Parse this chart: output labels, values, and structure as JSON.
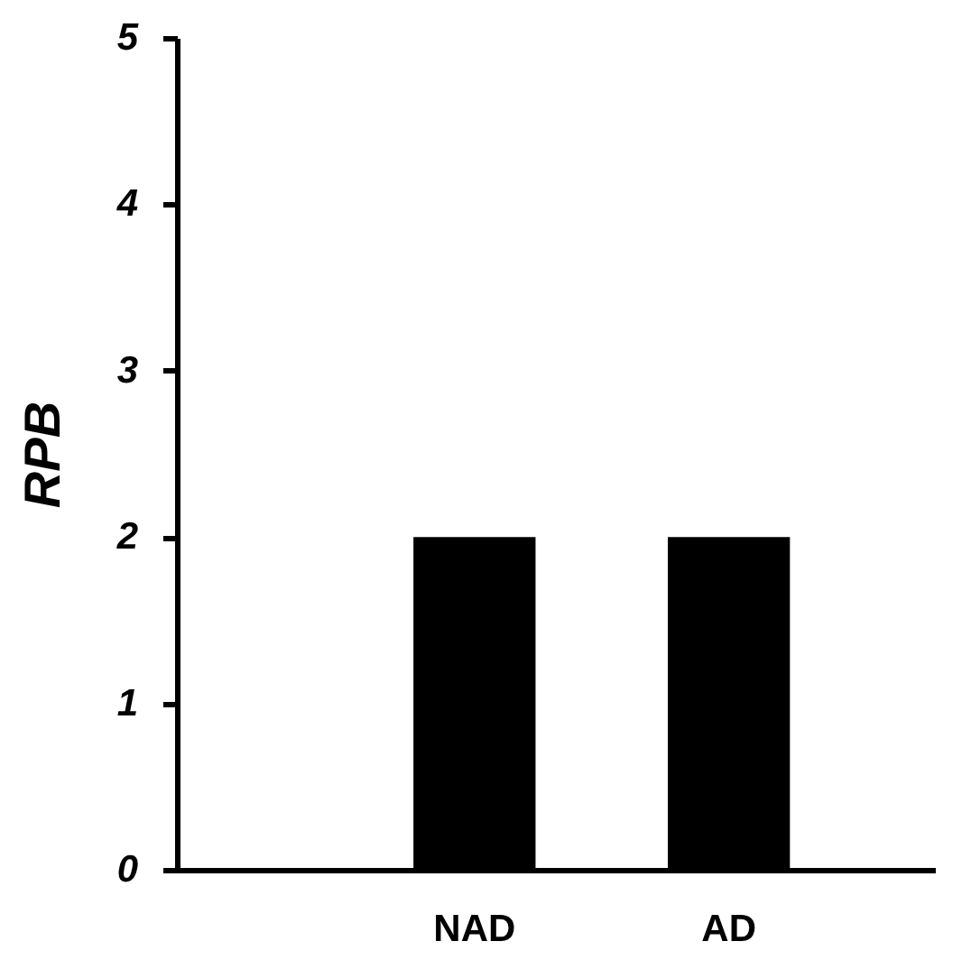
{
  "chart_data": {
    "type": "bar",
    "ylabel": "RPB",
    "categories": [
      "NAD",
      "AD"
    ],
    "values": [
      2,
      2
    ],
    "color": "#000000",
    "ylim": [
      0,
      5
    ],
    "yticks": [
      0,
      1,
      2,
      3,
      4,
      5
    ],
    "grid": false
  }
}
